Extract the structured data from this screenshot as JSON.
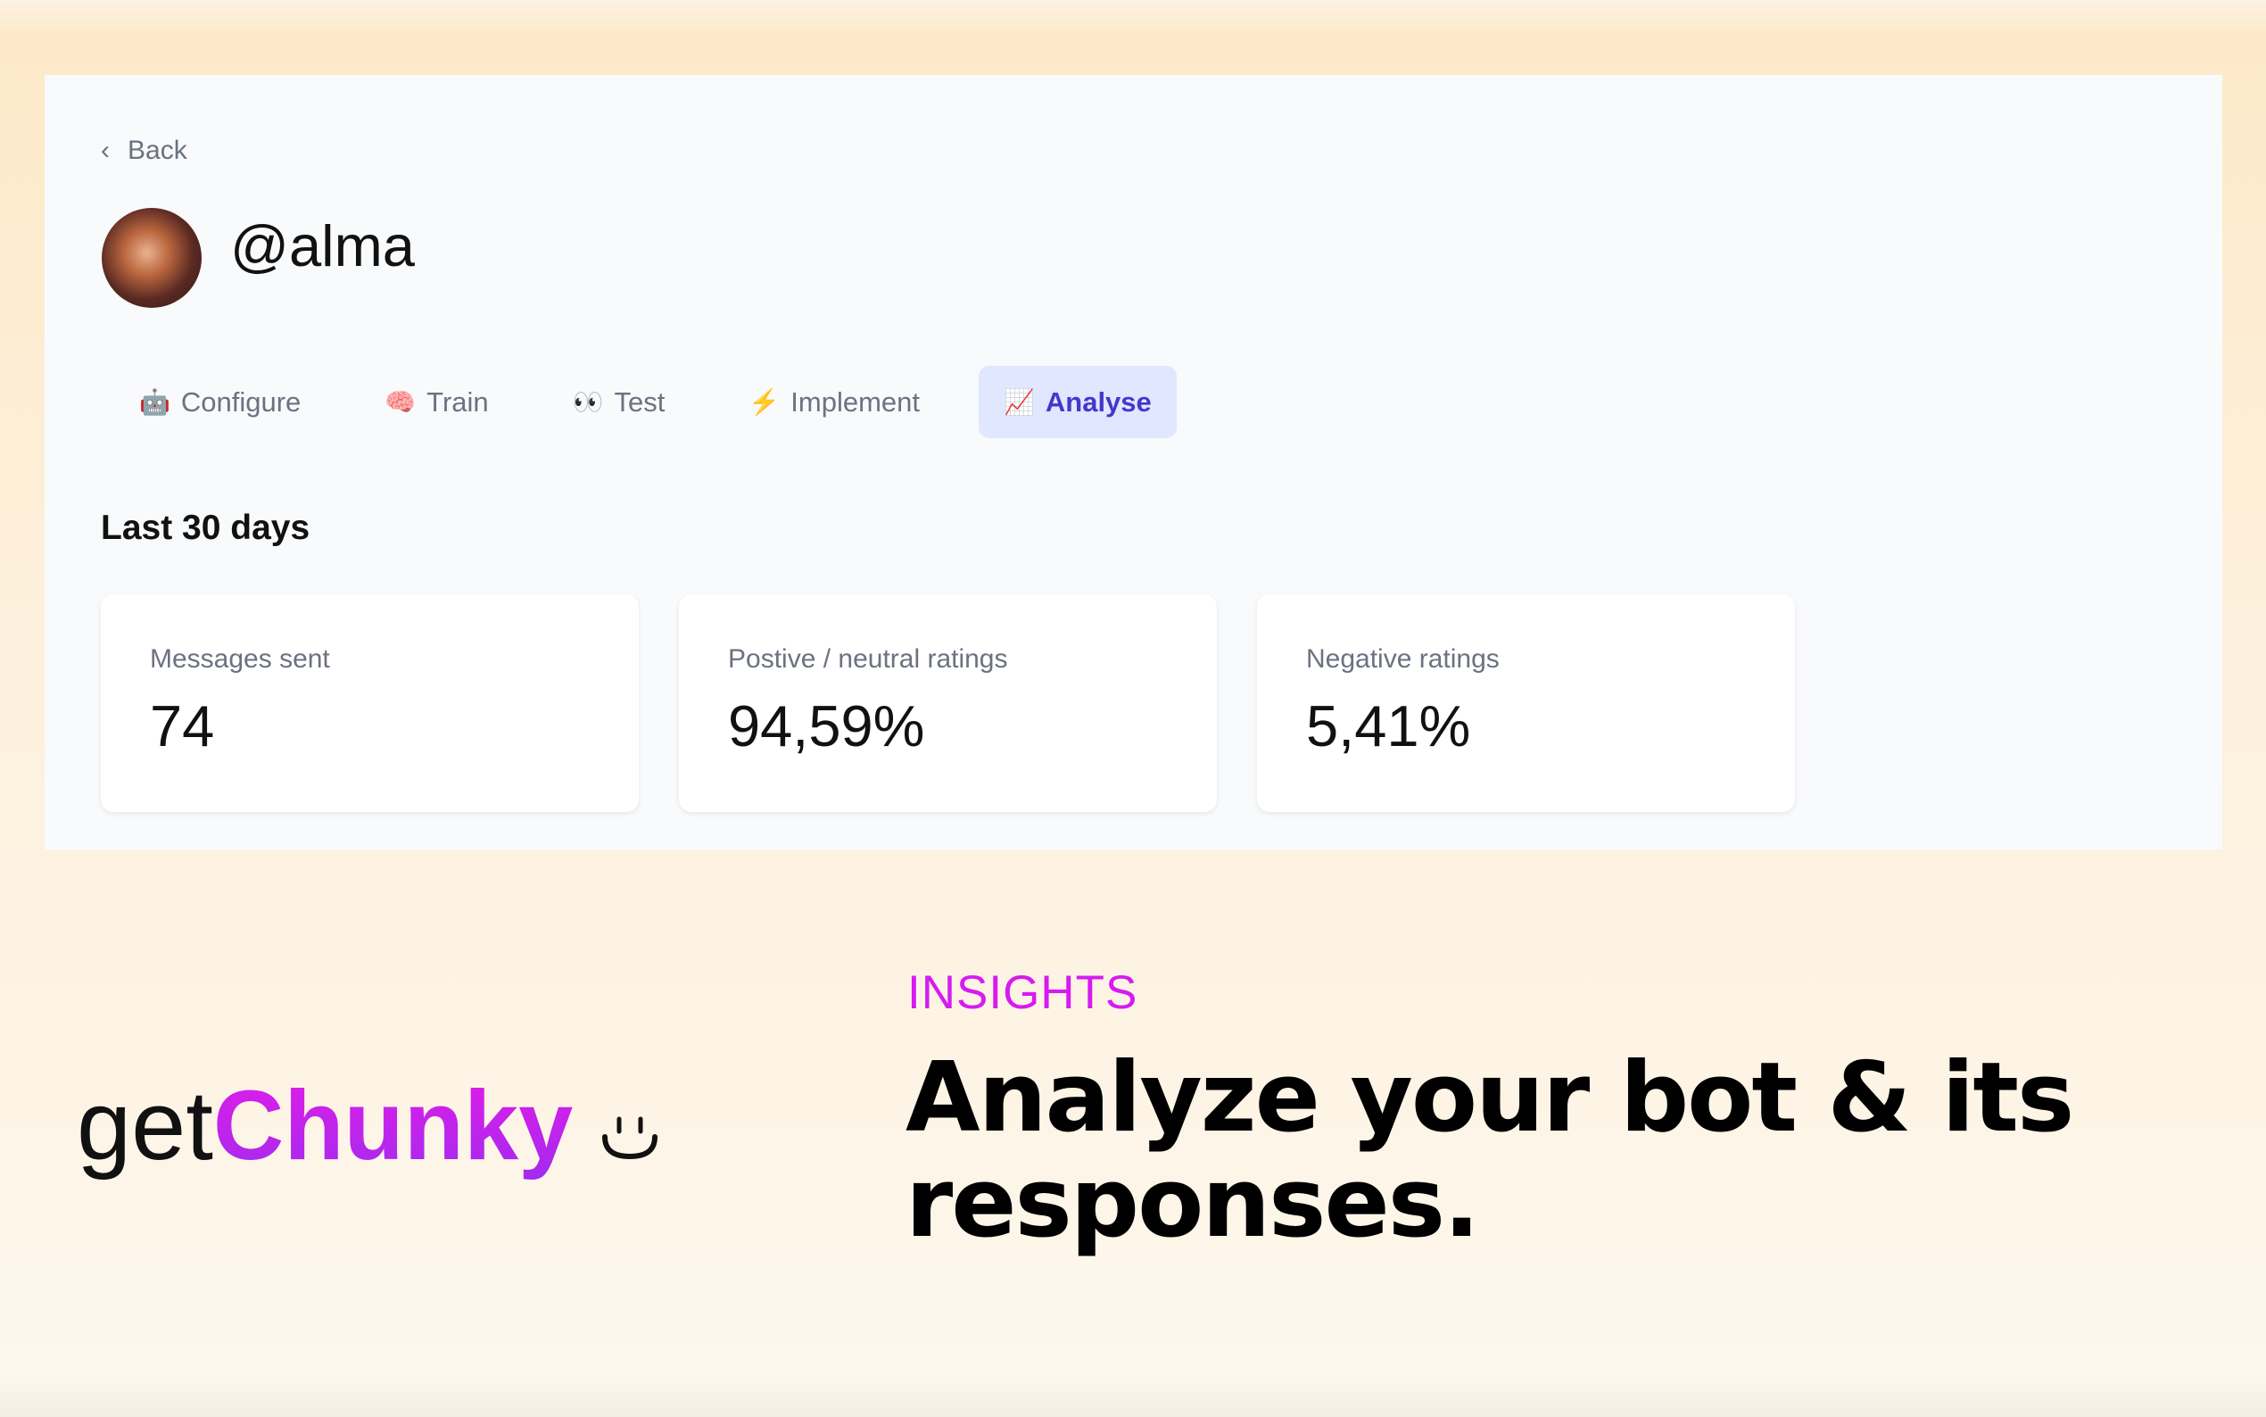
{
  "nav": {
    "back_label": "Back"
  },
  "profile": {
    "name": "@alma"
  },
  "tabs": [
    {
      "label": "Configure",
      "icon": "robot-icon"
    },
    {
      "label": "Train",
      "icon": "brain-icon"
    },
    {
      "label": "Test",
      "icon": "eyes-icon"
    },
    {
      "label": "Implement",
      "icon": "lightning-icon"
    },
    {
      "label": "Analyse",
      "icon": "chart-increasing-icon",
      "active": true
    }
  ],
  "section_title": "Last 30 days",
  "stats": [
    {
      "label": "Messages sent",
      "value": "74"
    },
    {
      "label": "Postive / neutral ratings",
      "value": "94,59%"
    },
    {
      "label": "Negative ratings",
      "value": "5,41%"
    }
  ],
  "marketing": {
    "logo_prefix": "get",
    "logo_brand": "Chunky",
    "eyebrow": "INSIGHTS",
    "headline_line1": "Analyze your bot & its",
    "headline_line2": "responses."
  },
  "colors": {
    "accent": "#4338ca",
    "active_tab_bg": "#e0e7ff",
    "eyebrow": "#d61bf0"
  }
}
